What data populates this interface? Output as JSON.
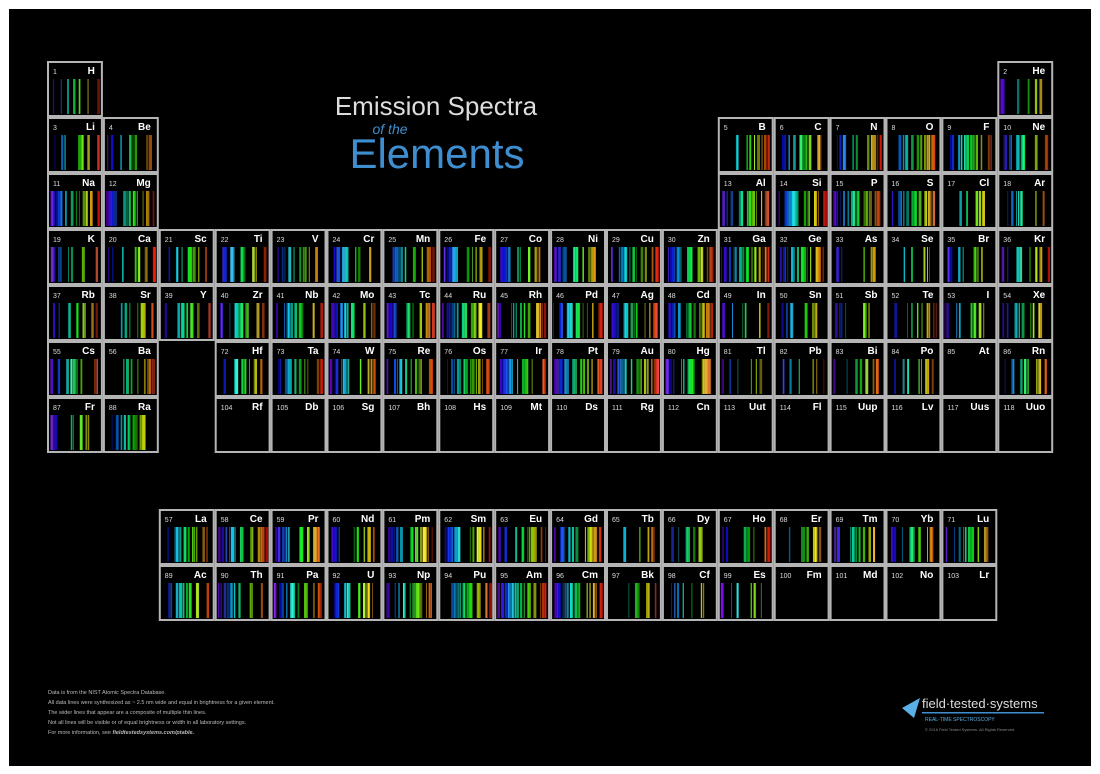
{
  "title": {
    "line1": "Emission Spectra",
    "line2": "of the",
    "line3": "Elements"
  },
  "elements": [
    {
      "number": 1,
      "symbol": "H"
    },
    {
      "number": 2,
      "symbol": "He"
    },
    {
      "number": 3,
      "symbol": "Li"
    },
    {
      "number": 4,
      "symbol": "Be"
    },
    {
      "number": 5,
      "symbol": "B"
    },
    {
      "number": 6,
      "symbol": "C"
    },
    {
      "number": 7,
      "symbol": "N"
    },
    {
      "number": 8,
      "symbol": "O"
    },
    {
      "number": 9,
      "symbol": "F"
    },
    {
      "number": 10,
      "symbol": "Ne"
    },
    {
      "number": 11,
      "symbol": "Na"
    },
    {
      "number": 12,
      "symbol": "Mg"
    },
    {
      "number": 13,
      "symbol": "Al"
    },
    {
      "number": 14,
      "symbol": "Si"
    },
    {
      "number": 15,
      "symbol": "P"
    },
    {
      "number": 16,
      "symbol": "S"
    },
    {
      "number": 17,
      "symbol": "Cl"
    },
    {
      "number": 18,
      "symbol": "Ar"
    },
    {
      "number": 19,
      "symbol": "K"
    },
    {
      "number": 20,
      "symbol": "Ca"
    },
    {
      "number": 21,
      "symbol": "Sc"
    },
    {
      "number": 22,
      "symbol": "Ti"
    },
    {
      "number": 23,
      "symbol": "V"
    },
    {
      "number": 24,
      "symbol": "Cr"
    },
    {
      "number": 25,
      "symbol": "Mn"
    },
    {
      "number": 26,
      "symbol": "Fe"
    },
    {
      "number": 27,
      "symbol": "Co"
    },
    {
      "number": 28,
      "symbol": "Ni"
    },
    {
      "number": 29,
      "symbol": "Cu"
    },
    {
      "number": 30,
      "symbol": "Zn"
    },
    {
      "number": 31,
      "symbol": "Ga"
    },
    {
      "number": 32,
      "symbol": "Ge"
    },
    {
      "number": 33,
      "symbol": "As"
    },
    {
      "number": 34,
      "symbol": "Se"
    },
    {
      "number": 35,
      "symbol": "Br"
    },
    {
      "number": 36,
      "symbol": "Kr"
    },
    {
      "number": 37,
      "symbol": "Rb"
    },
    {
      "number": 38,
      "symbol": "Sr"
    },
    {
      "number": 39,
      "symbol": "Y"
    },
    {
      "number": 40,
      "symbol": "Zr"
    },
    {
      "number": 41,
      "symbol": "Nb"
    },
    {
      "number": 42,
      "symbol": "Mo"
    },
    {
      "number": 43,
      "symbol": "Tc"
    },
    {
      "number": 44,
      "symbol": "Ru"
    },
    {
      "number": 45,
      "symbol": "Rh"
    },
    {
      "number": 46,
      "symbol": "Pd"
    },
    {
      "number": 47,
      "symbol": "Ag"
    },
    {
      "number": 48,
      "symbol": "Cd"
    },
    {
      "number": 49,
      "symbol": "In"
    },
    {
      "number": 50,
      "symbol": "Sn"
    },
    {
      "number": 51,
      "symbol": "Sb"
    },
    {
      "number": 52,
      "symbol": "Te"
    },
    {
      "number": 53,
      "symbol": "I"
    },
    {
      "number": 54,
      "symbol": "Xe"
    },
    {
      "number": 55,
      "symbol": "Cs"
    },
    {
      "number": 56,
      "symbol": "Ba"
    },
    {
      "number": 57,
      "symbol": "La"
    },
    {
      "number": 58,
      "symbol": "Ce"
    },
    {
      "number": 59,
      "symbol": "Pr"
    },
    {
      "number": 60,
      "symbol": "Nd"
    },
    {
      "number": 61,
      "symbol": "Pm"
    },
    {
      "number": 62,
      "symbol": "Sm"
    },
    {
      "number": 63,
      "symbol": "Eu"
    },
    {
      "number": 64,
      "symbol": "Gd"
    },
    {
      "number": 65,
      "symbol": "Tb"
    },
    {
      "number": 66,
      "symbol": "Dy"
    },
    {
      "number": 67,
      "symbol": "Ho"
    },
    {
      "number": 68,
      "symbol": "Er"
    },
    {
      "number": 69,
      "symbol": "Tm"
    },
    {
      "number": 70,
      "symbol": "Yb"
    },
    {
      "number": 71,
      "symbol": "Lu"
    },
    {
      "number": 72,
      "symbol": "Hf"
    },
    {
      "number": 73,
      "symbol": "Ta"
    },
    {
      "number": 74,
      "symbol": "W"
    },
    {
      "number": 75,
      "symbol": "Re"
    },
    {
      "number": 76,
      "symbol": "Os"
    },
    {
      "number": 77,
      "symbol": "Ir"
    },
    {
      "number": 78,
      "symbol": "Pt"
    },
    {
      "number": 79,
      "symbol": "Au"
    },
    {
      "number": 80,
      "symbol": "Hg"
    },
    {
      "number": 81,
      "symbol": "Tl"
    },
    {
      "number": 82,
      "symbol": "Pb"
    },
    {
      "number": 83,
      "symbol": "Bi"
    },
    {
      "number": 84,
      "symbol": "Po"
    },
    {
      "number": 85,
      "symbol": "At"
    },
    {
      "number": 86,
      "symbol": "Rn"
    },
    {
      "number": 87,
      "symbol": "Fr"
    },
    {
      "number": 88,
      "symbol": "Ra"
    },
    {
      "number": 89,
      "symbol": "Ac"
    },
    {
      "number": 90,
      "symbol": "Th"
    },
    {
      "number": 91,
      "symbol": "Pa"
    },
    {
      "number": 92,
      "symbol": "U"
    },
    {
      "number": 93,
      "symbol": "Np"
    },
    {
      "number": 94,
      "symbol": "Pu"
    },
    {
      "number": 95,
      "symbol": "Am"
    },
    {
      "number": 96,
      "symbol": "Cm"
    },
    {
      "number": 97,
      "symbol": "Bk"
    },
    {
      "number": 98,
      "symbol": "Cf"
    },
    {
      "number": 99,
      "symbol": "Es"
    },
    {
      "number": 100,
      "symbol": "Fm"
    },
    {
      "number": 101,
      "symbol": "Md"
    },
    {
      "number": 102,
      "symbol": "No"
    },
    {
      "number": 103,
      "symbol": "Lr"
    },
    {
      "number": 104,
      "symbol": "Rf"
    },
    {
      "number": 105,
      "symbol": "Db"
    },
    {
      "number": 106,
      "symbol": "Sg"
    },
    {
      "number": 107,
      "symbol": "Bh"
    },
    {
      "number": 108,
      "symbol": "Hs"
    },
    {
      "number": 109,
      "symbol": "Mt"
    },
    {
      "number": 110,
      "symbol": "Ds"
    },
    {
      "number": 111,
      "symbol": "Rg"
    },
    {
      "number": 112,
      "symbol": "Cn"
    },
    {
      "number": 113,
      "symbol": "Uut"
    },
    {
      "number": 114,
      "symbol": "Fl"
    },
    {
      "number": 115,
      "symbol": "Uup"
    },
    {
      "number": 116,
      "symbol": "Lv"
    },
    {
      "number": 117,
      "symbol": "Uus"
    },
    {
      "number": 118,
      "symbol": "Uuo"
    }
  ],
  "notes": {
    "lines": [
      "Data is from the NIST Atomic Spectra Database.",
      "All data lines were synthesized as ~ 2.5 nm wide and equal in brightness for a given element.",
      "The wider lines that appear are a composite of multiple thin lines.",
      "Not all lines will be visible or of equal brightness or width in all laboratory settings."
    ],
    "more_info": "For more information, see ",
    "link": "fieldtestedsystems.com/ptable."
  },
  "logo": {
    "name": "field·tested·systems",
    "tagline": "REAL-TIME SPECTROSCOPY",
    "copyright": "© 2016 Field Tested Systems. All Rights Reserved."
  }
}
